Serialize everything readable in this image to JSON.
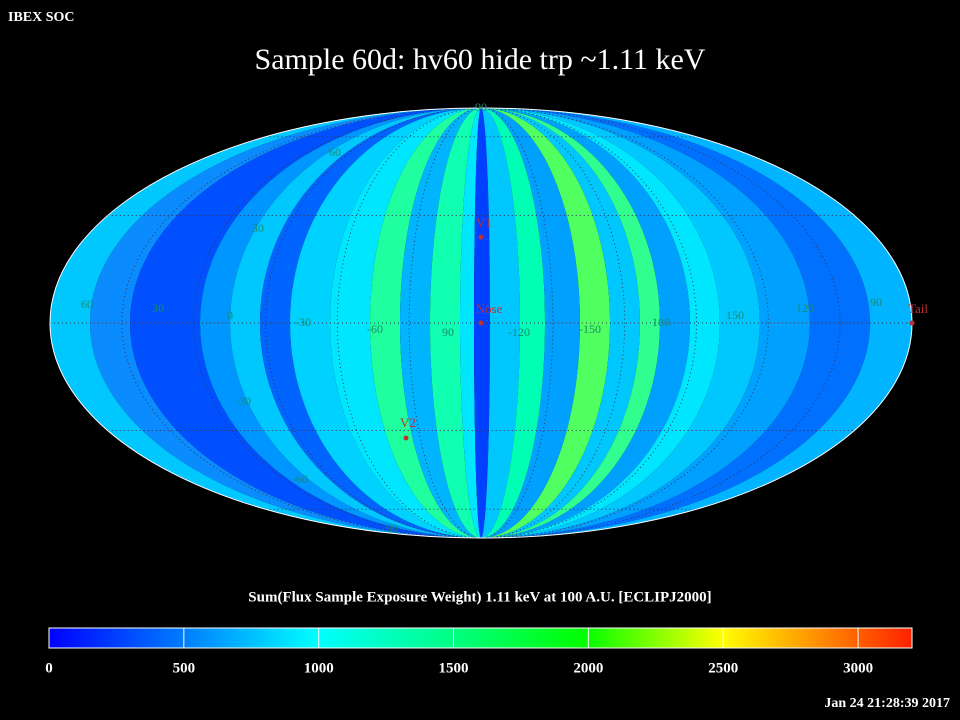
{
  "header": "IBEX SOC",
  "title": "Sample 60d: hv60 hide trp ~1.11 keV",
  "map": {
    "longitude_labels": [
      "60",
      "30",
      "0",
      "-30",
      "-60",
      "90",
      "-120",
      "-150",
      "180",
      "150",
      "120",
      "90"
    ],
    "latitude_labels": [
      "90",
      "60",
      "30",
      "-30",
      "-60",
      "90"
    ],
    "markers": [
      "V1",
      "Nose",
      "V2",
      "Tail"
    ]
  },
  "colorbar": {
    "label": "Sum(Flux Sample Exposure Weight)  1.11 keV at 100 A.U. [ECLIPJ2000]",
    "lim": [
      0,
      3200
    ],
    "ticks": [
      0,
      500,
      1000,
      1500,
      2000,
      2500,
      3000
    ]
  },
  "timestamp": "Jan 24 21:28:39 2017"
}
